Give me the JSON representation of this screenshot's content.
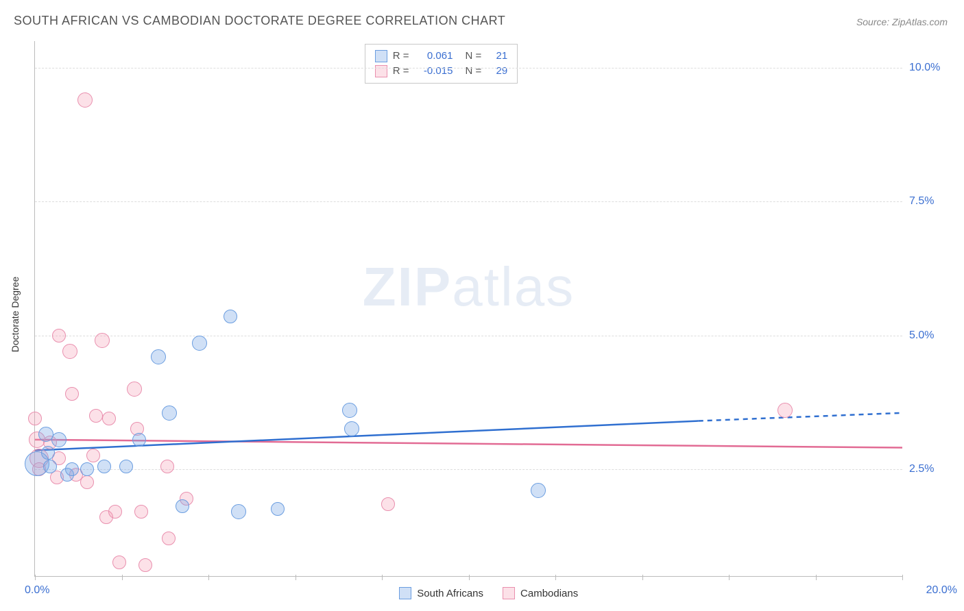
{
  "title": "SOUTH AFRICAN VS CAMBODIAN DOCTORATE DEGREE CORRELATION CHART",
  "source": "Source: ZipAtlas.com",
  "watermark_bold": "ZIP",
  "watermark_rest": "atlas",
  "ylabel": "Doctorate Degree",
  "chart": {
    "type": "scatter",
    "xlim": [
      0,
      20
    ],
    "ylim": [
      0.5,
      10.5
    ],
    "ytick_values": [
      2.5,
      5.0,
      7.5,
      10.0
    ],
    "ytick_labels": [
      "2.5%",
      "5.0%",
      "7.5%",
      "10.0%"
    ],
    "x_start_label": "0.0%",
    "x_end_label": "20.0%",
    "xtick_positions": [
      0,
      2,
      4,
      6,
      8,
      10,
      12,
      14,
      16,
      18,
      20
    ],
    "background_color": "#ffffff",
    "grid_color": "#dddddd",
    "series": {
      "south_africans": {
        "label": "South Africans",
        "fill": "rgba(120,165,228,0.35)",
        "stroke": "#6a9de0",
        "trend_color": "#2f6fd0",
        "marker_radius": 11,
        "R": "0.061",
        "N": "21",
        "trend": {
          "x1": 0,
          "y1": 2.85,
          "x2_solid": 15.3,
          "y2_solid": 3.4,
          "x2": 20,
          "y2": 3.55
        },
        "points": [
          {
            "x": 0.05,
            "y": 2.6,
            "r": 18
          },
          {
            "x": 0.25,
            "y": 3.15,
            "r": 11
          },
          {
            "x": 0.3,
            "y": 2.8,
            "r": 10
          },
          {
            "x": 0.35,
            "y": 2.55,
            "r": 10
          },
          {
            "x": 0.55,
            "y": 3.05,
            "r": 11
          },
          {
            "x": 0.75,
            "y": 2.4,
            "r": 10
          },
          {
            "x": 0.85,
            "y": 2.5,
            "r": 10
          },
          {
            "x": 1.2,
            "y": 2.5,
            "r": 10
          },
          {
            "x": 1.6,
            "y": 2.55,
            "r": 10
          },
          {
            "x": 2.1,
            "y": 2.55,
            "r": 10
          },
          {
            "x": 2.4,
            "y": 3.05,
            "r": 10
          },
          {
            "x": 2.85,
            "y": 4.6,
            "r": 11
          },
          {
            "x": 3.1,
            "y": 3.55,
            "r": 11
          },
          {
            "x": 3.4,
            "y": 1.8,
            "r": 10
          },
          {
            "x": 3.8,
            "y": 4.85,
            "r": 11
          },
          {
            "x": 4.5,
            "y": 5.35,
            "r": 10
          },
          {
            "x": 4.7,
            "y": 1.7,
            "r": 11
          },
          {
            "x": 5.6,
            "y": 1.75,
            "r": 10
          },
          {
            "x": 7.25,
            "y": 3.6,
            "r": 11
          },
          {
            "x": 7.3,
            "y": 3.25,
            "r": 11
          },
          {
            "x": 11.6,
            "y": 2.1,
            "r": 11
          }
        ]
      },
      "cambodians": {
        "label": "Cambodians",
        "fill": "rgba(245,155,180,0.30)",
        "stroke": "#e98fae",
        "trend_color": "#e26b94",
        "marker_radius": 11,
        "R": "-0.015",
        "N": "29",
        "trend": {
          "x1": 0,
          "y1": 3.05,
          "x2_solid": 20,
          "y2_solid": 2.9,
          "x2": 20,
          "y2": 2.9
        },
        "points": [
          {
            "x": 0.0,
            "y": 3.45,
            "r": 10
          },
          {
            "x": 0.05,
            "y": 3.05,
            "r": 12
          },
          {
            "x": 0.1,
            "y": 2.7,
            "r": 14
          },
          {
            "x": 0.1,
            "y": 2.5,
            "r": 10
          },
          {
            "x": 0.35,
            "y": 3.0,
            "r": 10
          },
          {
            "x": 0.5,
            "y": 2.35,
            "r": 10
          },
          {
            "x": 0.55,
            "y": 5.0,
            "r": 10
          },
          {
            "x": 0.55,
            "y": 2.7,
            "r": 10
          },
          {
            "x": 0.8,
            "y": 4.7,
            "r": 11
          },
          {
            "x": 0.85,
            "y": 3.9,
            "r": 10
          },
          {
            "x": 0.95,
            "y": 2.4,
            "r": 10
          },
          {
            "x": 1.15,
            "y": 9.4,
            "r": 11
          },
          {
            "x": 1.2,
            "y": 2.25,
            "r": 10
          },
          {
            "x": 1.35,
            "y": 2.75,
            "r": 10
          },
          {
            "x": 1.4,
            "y": 3.5,
            "r": 10
          },
          {
            "x": 1.55,
            "y": 4.9,
            "r": 11
          },
          {
            "x": 1.65,
            "y": 1.6,
            "r": 10
          },
          {
            "x": 1.7,
            "y": 3.45,
            "r": 10
          },
          {
            "x": 1.85,
            "y": 1.7,
            "r": 10
          },
          {
            "x": 1.95,
            "y": 0.75,
            "r": 10
          },
          {
            "x": 2.3,
            "y": 4.0,
            "r": 11
          },
          {
            "x": 2.35,
            "y": 3.25,
            "r": 10
          },
          {
            "x": 2.45,
            "y": 1.7,
            "r": 10
          },
          {
            "x": 2.55,
            "y": 0.7,
            "r": 10
          },
          {
            "x": 3.05,
            "y": 2.55,
            "r": 10
          },
          {
            "x": 3.08,
            "y": 1.2,
            "r": 10
          },
          {
            "x": 3.5,
            "y": 1.95,
            "r": 10
          },
          {
            "x": 8.15,
            "y": 1.85,
            "r": 10
          },
          {
            "x": 17.3,
            "y": 3.6,
            "r": 11
          }
        ]
      }
    },
    "stats_labels": {
      "R": "R  =",
      "N": "N  ="
    }
  }
}
